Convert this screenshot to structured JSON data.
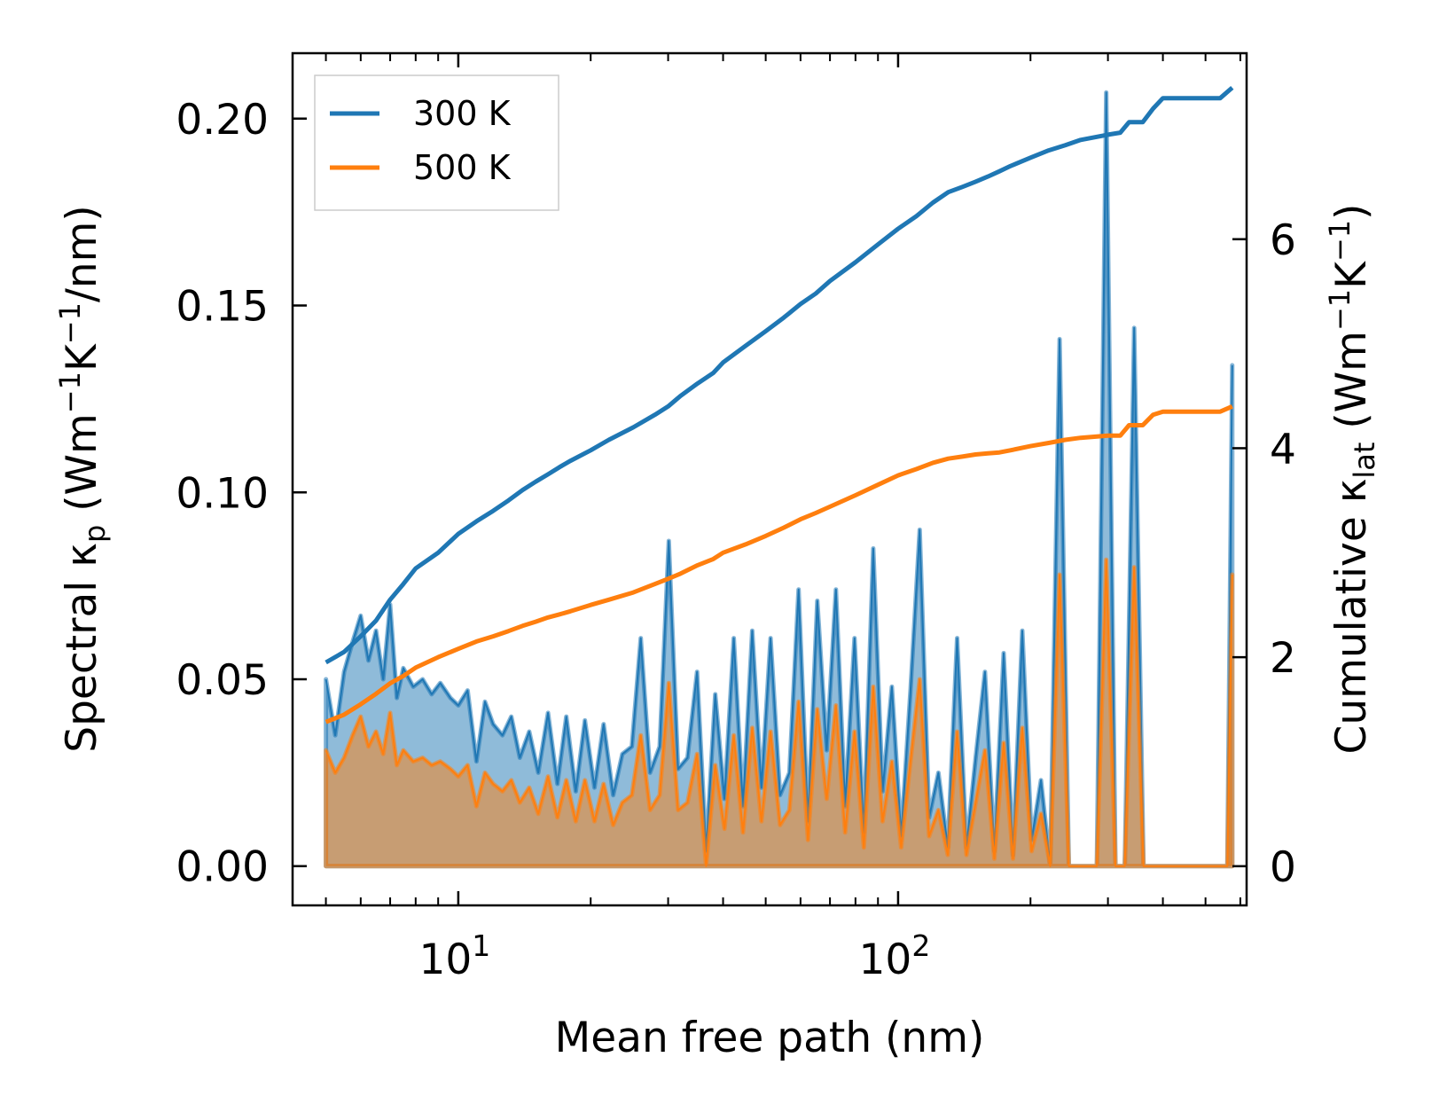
{
  "chart_data": {
    "type": "line",
    "xscale": "log",
    "xlim": [
      4.2,
      620
    ],
    "ylim_left": [
      -0.0105,
      0.2175
    ],
    "ylim_right": [
      -0.375,
      7.78
    ],
    "xlabel": "Mean free path (nm)",
    "ylabel_left": {
      "prefix": "Spectral κ",
      "sub": "p",
      "rest": " (Wm",
      "sup1": "−1",
      "mid": "K",
      "sup2": "−1",
      "end": "/nm)"
    },
    "ylabel_right": {
      "prefix": "Cumulative κ",
      "sub": "lat",
      "rest": " (Wm",
      "sup1": "−1",
      "mid": "K",
      "sup2": "−1",
      "end": ")"
    },
    "x_major_ticks": [
      {
        "value": 10,
        "base": "10",
        "exp": "1"
      },
      {
        "value": 100,
        "base": "10",
        "exp": "2"
      }
    ],
    "x_minor_ticks": [
      5,
      6,
      7,
      8,
      9,
      20,
      30,
      40,
      50,
      60,
      70,
      80,
      90,
      200,
      300,
      400,
      500,
      600
    ],
    "y_left_ticks": [
      {
        "value": 0,
        "label": "0.00"
      },
      {
        "value": 0.05,
        "label": "0.05"
      },
      {
        "value": 0.1,
        "label": "0.10"
      },
      {
        "value": 0.15,
        "label": "0.15"
      },
      {
        "value": 0.2,
        "label": "0.20"
      }
    ],
    "y_right_ticks": [
      {
        "value": 0,
        "label": "0"
      },
      {
        "value": 2,
        "label": "2"
      },
      {
        "value": 4,
        "label": "4"
      },
      {
        "value": 6,
        "label": "6"
      }
    ],
    "legend": {
      "position": "upper-left",
      "entries": [
        {
          "label": "300 K",
          "color": "#1f77b4"
        },
        {
          "label": "500 K",
          "color": "#ff7f0e"
        }
      ]
    },
    "series": [
      {
        "name": "300 K spectral",
        "axis": "left",
        "style": "filled",
        "color": "#1f77b4",
        "x": [
          5.0,
          5.25,
          5.5,
          5.75,
          6.0,
          6.25,
          6.5,
          6.75,
          7.0,
          7.25,
          7.5,
          7.9,
          8.3,
          8.7,
          9.1,
          9.6,
          10.0,
          10.5,
          11.0,
          11.5,
          12.0,
          12.6,
          13.2,
          13.8,
          14.5,
          15.2,
          16.0,
          16.8,
          17.6,
          18.5,
          19.4,
          20.4,
          21.4,
          22.5,
          23.6,
          24.8,
          26.0,
          27.3,
          28.7,
          30.1,
          31.6,
          33.2,
          34.9,
          36.6,
          38.4,
          40.3,
          42.3,
          44.4,
          46.6,
          48.9,
          51.3,
          53.9,
          56.6,
          59.4,
          62.4,
          65.5,
          68.8,
          72.2,
          75.8,
          79.6,
          83.6,
          87.8,
          92.2,
          96.8,
          101.6,
          106.7,
          112,
          117.6,
          123.5,
          129.7,
          136.2,
          143,
          150.1,
          157.6,
          165.5,
          173.8,
          182.5,
          191.6,
          201.2,
          211.3,
          221.8,
          232.9,
          244.5,
          256.8,
          269.6,
          283.1,
          297.3,
          312.1,
          327.7,
          344.1,
          361.3,
          379.4,
          398.4,
          418.3,
          439.2,
          461.2,
          484.2,
          508.4,
          533.9,
          560.6,
          575
        ],
        "y": [
          0.05,
          0.035,
          0.052,
          0.06,
          0.067,
          0.055,
          0.063,
          0.05,
          0.07,
          0.045,
          0.053,
          0.048,
          0.05,
          0.046,
          0.049,
          0.045,
          0.043,
          0.047,
          0.028,
          0.044,
          0.038,
          0.035,
          0.04,
          0.029,
          0.036,
          0.025,
          0.041,
          0.022,
          0.04,
          0.02,
          0.039,
          0.021,
          0.038,
          0.019,
          0.03,
          0.032,
          0.061,
          0.025,
          0.032,
          0.087,
          0.026,
          0.029,
          0.052,
          0.004,
          0.046,
          0.018,
          0.061,
          0.016,
          0.063,
          0.021,
          0.061,
          0.019,
          0.025,
          0.074,
          0.012,
          0.071,
          0.031,
          0.074,
          0.016,
          0.061,
          0.009,
          0.085,
          0.02,
          0.048,
          0.008,
          0.047,
          0.09,
          0.013,
          0.025,
          0.005,
          0.061,
          0.005,
          0.029,
          0.052,
          0.004,
          0.057,
          0.003,
          0.063,
          0.007,
          0.023,
          0.0,
          0.141,
          0.0,
          0.0,
          0.0,
          0.0,
          0.207,
          0.0,
          0.0,
          0.144,
          0.0,
          0.0,
          0.0,
          0.0,
          0.0,
          0.0,
          0.0,
          0.0,
          0.0,
          0.0,
          0.134
        ]
      },
      {
        "name": "500 K spectral",
        "axis": "left",
        "style": "filled",
        "color": "#ff7f0e",
        "x": [
          5.0,
          5.25,
          5.5,
          5.75,
          6.0,
          6.25,
          6.5,
          6.75,
          7.0,
          7.25,
          7.5,
          7.9,
          8.3,
          8.7,
          9.1,
          9.6,
          10.0,
          10.5,
          11.0,
          11.5,
          12.0,
          12.6,
          13.2,
          13.8,
          14.5,
          15.2,
          16.0,
          16.8,
          17.6,
          18.5,
          19.4,
          20.4,
          21.4,
          22.5,
          23.6,
          24.8,
          26.0,
          27.3,
          28.7,
          30.1,
          31.6,
          33.2,
          34.9,
          36.6,
          38.4,
          40.3,
          42.3,
          44.4,
          46.6,
          48.9,
          51.3,
          53.9,
          56.6,
          59.4,
          62.4,
          65.5,
          68.8,
          72.2,
          75.8,
          79.6,
          83.6,
          87.8,
          92.2,
          96.8,
          101.6,
          106.7,
          112,
          117.6,
          123.5,
          129.7,
          136.2,
          143,
          150.1,
          157.6,
          165.5,
          173.8,
          182.5,
          191.6,
          201.2,
          211.3,
          221.8,
          232.9,
          244.5,
          256.8,
          269.6,
          283.1,
          297.3,
          312.1,
          327.7,
          344.1,
          361.3,
          379.4,
          398.4,
          418.3,
          439.2,
          461.2,
          484.2,
          508.4,
          533.9,
          560.6,
          575
        ],
        "y": [
          0.031,
          0.025,
          0.029,
          0.035,
          0.04,
          0.032,
          0.036,
          0.03,
          0.041,
          0.027,
          0.031,
          0.028,
          0.029,
          0.027,
          0.028,
          0.026,
          0.024,
          0.027,
          0.016,
          0.025,
          0.022,
          0.02,
          0.023,
          0.017,
          0.021,
          0.014,
          0.024,
          0.013,
          0.023,
          0.012,
          0.023,
          0.012,
          0.022,
          0.011,
          0.017,
          0.019,
          0.035,
          0.015,
          0.019,
          0.049,
          0.015,
          0.017,
          0.03,
          0.0,
          0.027,
          0.01,
          0.035,
          0.009,
          0.037,
          0.012,
          0.036,
          0.011,
          0.015,
          0.044,
          0.007,
          0.042,
          0.018,
          0.043,
          0.009,
          0.036,
          0.005,
          0.048,
          0.012,
          0.028,
          0.005,
          0.028,
          0.05,
          0.008,
          0.015,
          0.003,
          0.036,
          0.003,
          0.017,
          0.031,
          0.002,
          0.033,
          0.002,
          0.037,
          0.004,
          0.014,
          0.0,
          0.078,
          0.0,
          0.0,
          0.0,
          0.0,
          0.082,
          0.0,
          0.0,
          0.08,
          0.0,
          0.0,
          0.0,
          0.0,
          0.0,
          0.0,
          0.0,
          0.0,
          0.0,
          0.0,
          0.078
        ]
      },
      {
        "name": "300 K",
        "axis": "right",
        "style": "line",
        "color": "#1f77b4",
        "x": [
          5.0,
          5.5,
          6.0,
          6.5,
          7.0,
          7.5,
          8.0,
          9.0,
          10.0,
          11.0,
          12.0,
          13.0,
          14.0,
          15.0,
          16.0,
          17.0,
          18.0,
          20.0,
          22.0,
          25.0,
          28.0,
          30.0,
          32.0,
          35.0,
          38.0,
          40.0,
          45.0,
          50.0,
          55.0,
          60.0,
          65.0,
          70.0,
          80.0,
          90.0,
          100.0,
          110.0,
          120.0,
          130.0,
          140.0,
          150.0,
          160.0,
          170.0,
          180.0,
          200.0,
          220.0,
          240.0,
          260.0,
          300.0,
          320.0,
          335.0,
          360.0,
          380.0,
          400.0,
          450.0,
          500.0,
          540.0,
          575.0
        ],
        "y": [
          1.95,
          2.05,
          2.2,
          2.35,
          2.55,
          2.7,
          2.85,
          3.0,
          3.18,
          3.3,
          3.4,
          3.5,
          3.6,
          3.68,
          3.75,
          3.82,
          3.88,
          3.98,
          4.08,
          4.2,
          4.32,
          4.4,
          4.5,
          4.62,
          4.72,
          4.82,
          4.98,
          5.12,
          5.25,
          5.38,
          5.48,
          5.6,
          5.78,
          5.95,
          6.1,
          6.22,
          6.35,
          6.45,
          6.5,
          6.55,
          6.6,
          6.65,
          6.7,
          6.78,
          6.85,
          6.9,
          6.95,
          7.0,
          7.02,
          7.12,
          7.12,
          7.25,
          7.35,
          7.35,
          7.35,
          7.35,
          7.45
        ]
      },
      {
        "name": "500 K",
        "axis": "right",
        "style": "line",
        "color": "#ff7f0e",
        "x": [
          5.0,
          5.5,
          6.0,
          6.5,
          7.0,
          7.5,
          8.0,
          9.0,
          10.0,
          11.0,
          12.0,
          13.0,
          14.0,
          15.0,
          16.0,
          17.0,
          18.0,
          20.0,
          22.0,
          25.0,
          28.0,
          30.0,
          32.0,
          35.0,
          38.0,
          40.0,
          45.0,
          50.0,
          55.0,
          60.0,
          65.0,
          70.0,
          80.0,
          90.0,
          100.0,
          110.0,
          120.0,
          130.0,
          140.0,
          150.0,
          160.0,
          170.0,
          180.0,
          200.0,
          220.0,
          240.0,
          260.0,
          300.0,
          320.0,
          335.0,
          360.0,
          380.0,
          400.0,
          450.0,
          500.0,
          540.0,
          575.0
        ],
        "y": [
          1.38,
          1.45,
          1.55,
          1.65,
          1.75,
          1.82,
          1.9,
          2.0,
          2.08,
          2.15,
          2.2,
          2.25,
          2.3,
          2.34,
          2.38,
          2.41,
          2.44,
          2.5,
          2.55,
          2.62,
          2.7,
          2.75,
          2.8,
          2.88,
          2.94,
          3.0,
          3.08,
          3.16,
          3.24,
          3.32,
          3.38,
          3.44,
          3.55,
          3.65,
          3.74,
          3.8,
          3.86,
          3.9,
          3.92,
          3.94,
          3.95,
          3.96,
          3.98,
          4.02,
          4.05,
          4.08,
          4.1,
          4.12,
          4.12,
          4.22,
          4.22,
          4.32,
          4.35,
          4.35,
          4.35,
          4.35,
          4.4
        ]
      }
    ]
  }
}
